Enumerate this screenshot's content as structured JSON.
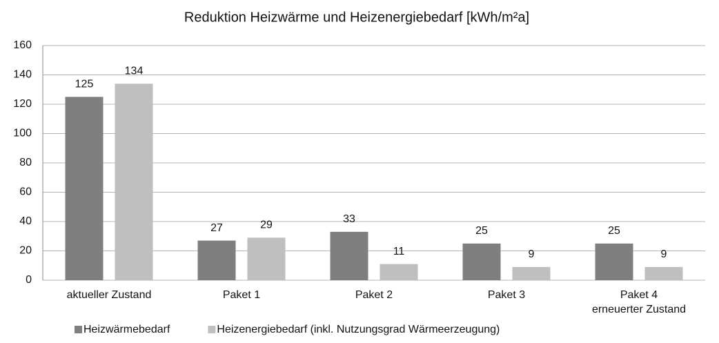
{
  "chart_data": {
    "type": "bar",
    "title": "Reduktion Heizwärme und Heizenergiebedarf [kWh/m²a]",
    "categories": [
      "aktueller Zustand",
      "Paket 1",
      "Paket 2",
      "Paket 3",
      "Paket 4\nerneuerter Zustand"
    ],
    "series": [
      {
        "name": "Heizwärmebedarf",
        "color": "#7f7f7f",
        "values": [
          125,
          27,
          33,
          25,
          25
        ]
      },
      {
        "name": "Heizenergiebedarf (inkl. Nutzungsgrad Wärmeerzeugung)",
        "color": "#bfbfbf",
        "values": [
          134,
          29,
          11,
          9,
          9
        ]
      }
    ],
    "ylim": [
      0,
      160
    ],
    "yticks": [
      0,
      20,
      40,
      60,
      80,
      100,
      120,
      140,
      160
    ],
    "grid": true,
    "legend": "bottom"
  }
}
